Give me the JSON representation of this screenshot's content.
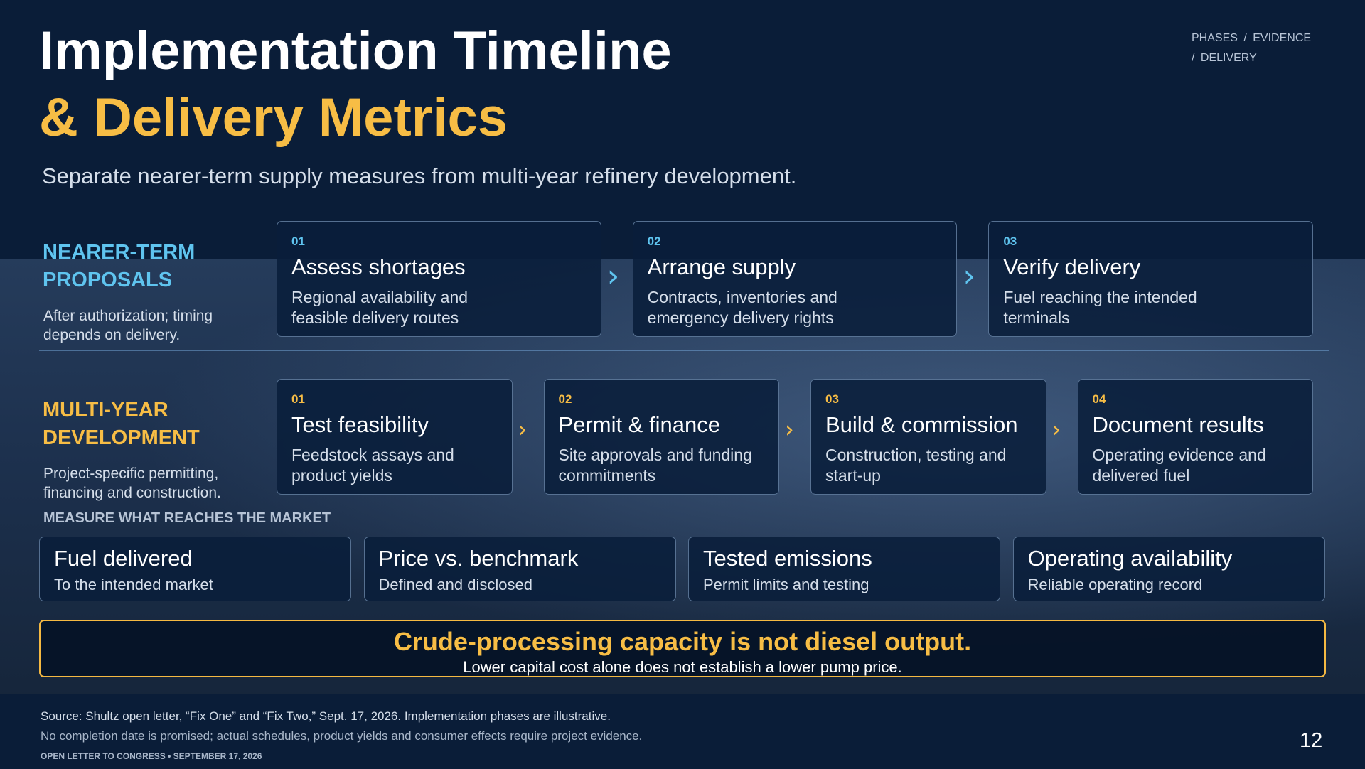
{
  "header": {
    "title_line1": "Implementation Timeline",
    "title_line2": "& Delivery Metrics",
    "subtitle": "Separate nearer-term supply measures from multi-year refinery development.",
    "breadcrumb": "PHASES / EVIDENCE / DELIVERY"
  },
  "nearer_term": {
    "label": "NEARER-TERM PROPOSALS",
    "note": "After authorization; timing depends on delivery.",
    "steps": [
      {
        "number": "01",
        "title": "Assess shortages",
        "text": "Regional availability and feasible delivery routes"
      },
      {
        "number": "02",
        "title": "Arrange supply",
        "text": "Contracts, inventories and emergency delivery rights"
      },
      {
        "number": "03",
        "title": "Verify delivery",
        "text": "Fuel reaching the intended terminals"
      }
    ]
  },
  "multi_year": {
    "label": "MULTI-YEAR DEVELOPMENT",
    "note": "Project-specific permitting, financing and construction.",
    "steps": [
      {
        "number": "01",
        "title": "Test feasibility",
        "text": "Feedstock assays and product yields"
      },
      {
        "number": "02",
        "title": "Permit & finance",
        "text": "Site approvals and funding commitments"
      },
      {
        "number": "03",
        "title": "Build & commission",
        "text": "Construction, testing and start-up"
      },
      {
        "number": "04",
        "title": "Document results",
        "text": "Operating evidence and delivered fuel"
      }
    ]
  },
  "metrics": {
    "heading": "MEASURE WHAT REACHES THE MARKET",
    "items": [
      {
        "title": "Fuel delivered",
        "text": "To the intended market"
      },
      {
        "title": "Price vs. benchmark",
        "text": "Defined and disclosed"
      },
      {
        "title": "Tested emissions",
        "text": "Permit limits and testing"
      },
      {
        "title": "Operating availability",
        "text": "Reliable operating record"
      }
    ]
  },
  "callout": {
    "headline": "Crude-processing capacity is not diesel output.",
    "text": "Lower capital cost alone does not establish a lower pump price."
  },
  "footer": {
    "source": "Source: Shultz open letter, “Fix One” and “Fix Two,” Sept. 17, 2026. Implementation phases are illustrative.",
    "note": "No completion date is promised; actual schedules, product yields and consumer effects require project evidence.",
    "publication": "OPEN LETTER TO CONGRESS • SEPTEMBER 17, 2026",
    "page": "12"
  }
}
